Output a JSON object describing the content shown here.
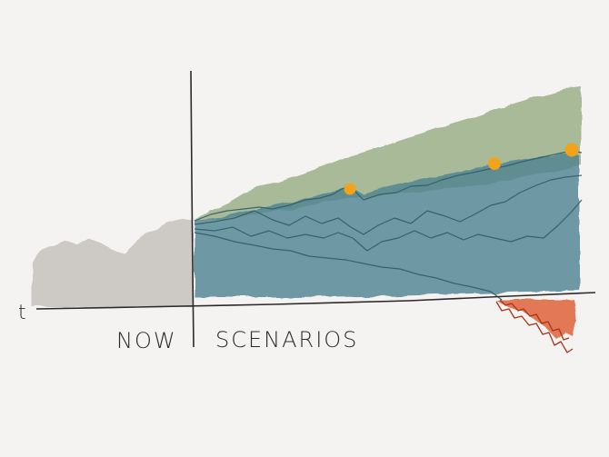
{
  "labels": {
    "axis": "t",
    "now": "NOW",
    "scenarios": "SCENARIOS"
  },
  "colors": {
    "background": "#f4f3f1",
    "history_fill": "#c7c4bf",
    "upside_fill": "#8fa87a",
    "scenario_fill": "#4e8292",
    "scenario_lines": "#2f5d6a",
    "downside_fill": "#e0633a",
    "milestone_dots": "#f2a31b",
    "ink": "#2b2b2b"
  }
}
